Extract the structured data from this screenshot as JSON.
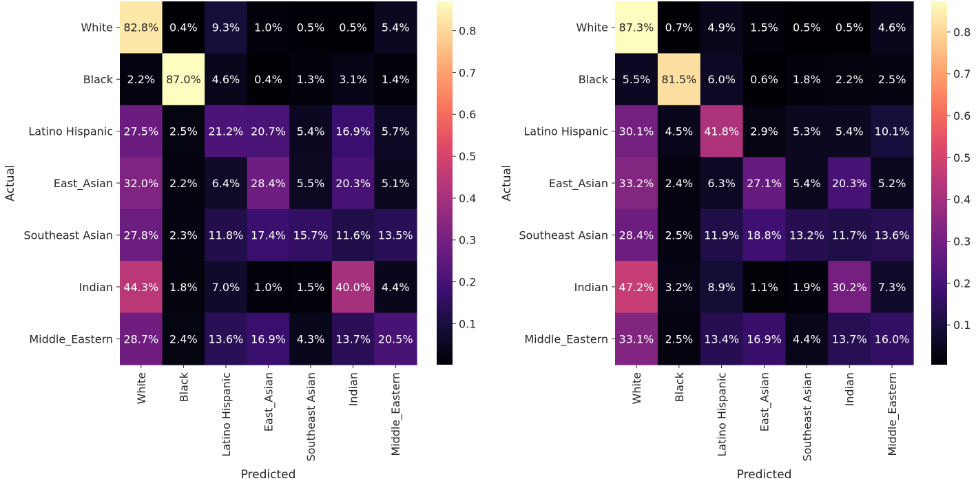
{
  "chart_data": [
    {
      "type": "heatmap",
      "title": "",
      "xlabel": "Predicted",
      "ylabel": "Actual",
      "x_categories": [
        "White",
        "Black",
        "Latino Hispanic",
        "East_Asian",
        "Southeast Asian",
        "Indian",
        "Middle_Eastern"
      ],
      "y_categories": [
        "White",
        "Black",
        "Latino Hispanic",
        "East_Asian",
        "Southeast Asian",
        "Indian",
        "Middle_Eastern"
      ],
      "values": [
        [
          0.828,
          0.004,
          0.093,
          0.01,
          0.005,
          0.005,
          0.054
        ],
        [
          0.022,
          0.87,
          0.046,
          0.004,
          0.013,
          0.031,
          0.014
        ],
        [
          0.275,
          0.025,
          0.212,
          0.207,
          0.054,
          0.169,
          0.057
        ],
        [
          0.32,
          0.022,
          0.064,
          0.284,
          0.055,
          0.203,
          0.051
        ],
        [
          0.278,
          0.023,
          0.118,
          0.174,
          0.157,
          0.116,
          0.135
        ],
        [
          0.443,
          0.018,
          0.07,
          0.01,
          0.015,
          0.4,
          0.044
        ],
        [
          0.287,
          0.024,
          0.136,
          0.169,
          0.043,
          0.137,
          0.205
        ]
      ],
      "annotations": [
        [
          "82.8%",
          "0.4%",
          "9.3%",
          "1.0%",
          "0.5%",
          "0.5%",
          "5.4%"
        ],
        [
          "2.2%",
          "87.0%",
          "4.6%",
          "0.4%",
          "1.3%",
          "3.1%",
          "1.4%"
        ],
        [
          "27.5%",
          "2.5%",
          "21.2%",
          "20.7%",
          "5.4%",
          "16.9%",
          "5.7%"
        ],
        [
          "32.0%",
          "2.2%",
          "6.4%",
          "28.4%",
          "5.5%",
          "20.3%",
          "5.1%"
        ],
        [
          "27.8%",
          "2.3%",
          "11.8%",
          "17.4%",
          "15.7%",
          "11.6%",
          "13.5%"
        ],
        [
          "44.3%",
          "1.8%",
          "7.0%",
          "1.0%",
          "1.5%",
          "40.0%",
          "4.4%"
        ],
        [
          "28.7%",
          "2.4%",
          "13.6%",
          "16.9%",
          "4.3%",
          "13.7%",
          "20.5%"
        ]
      ],
      "colormap": "magma",
      "colorbar": {
        "vmin": 0.002,
        "vmax": 0.87,
        "ticks": [
          0.1,
          0.2,
          0.3,
          0.4,
          0.5,
          0.6,
          0.7,
          0.8
        ],
        "tick_labels": [
          "0.1",
          "0.2",
          "0.3",
          "0.4",
          "0.5",
          "0.6",
          "0.7",
          "0.8"
        ]
      }
    },
    {
      "type": "heatmap",
      "title": "",
      "xlabel": "Predicted",
      "ylabel": "Actual",
      "x_categories": [
        "White",
        "Black",
        "Latino Hispanic",
        "East_Asian",
        "Southeast Asian",
        "Indian",
        "Middle_Eastern"
      ],
      "y_categories": [
        "White",
        "Black",
        "Latino Hispanic",
        "East_Asian",
        "Southeast Asian",
        "Indian",
        "Middle_Eastern"
      ],
      "values": [
        [
          0.873,
          0.007,
          0.049,
          0.015,
          0.005,
          0.005,
          0.046
        ],
        [
          0.055,
          0.815,
          0.06,
          0.006,
          0.018,
          0.022,
          0.025
        ],
        [
          0.301,
          0.045,
          0.418,
          0.029,
          0.053,
          0.054,
          0.101
        ],
        [
          0.332,
          0.024,
          0.063,
          0.271,
          0.054,
          0.203,
          0.052
        ],
        [
          0.284,
          0.025,
          0.119,
          0.188,
          0.132,
          0.117,
          0.136
        ],
        [
          0.472,
          0.032,
          0.089,
          0.011,
          0.019,
          0.302,
          0.073
        ],
        [
          0.331,
          0.025,
          0.134,
          0.169,
          0.044,
          0.137,
          0.16
        ]
      ],
      "annotations": [
        [
          "87.3%",
          "0.7%",
          "4.9%",
          "1.5%",
          "0.5%",
          "0.5%",
          "4.6%"
        ],
        [
          "5.5%",
          "81.5%",
          "6.0%",
          "0.6%",
          "1.8%",
          "2.2%",
          "2.5%"
        ],
        [
          "30.1%",
          "4.5%",
          "41.8%",
          "2.9%",
          "5.3%",
          "5.4%",
          "10.1%"
        ],
        [
          "33.2%",
          "2.4%",
          "6.3%",
          "27.1%",
          "5.4%",
          "20.3%",
          "5.2%"
        ],
        [
          "28.4%",
          "2.5%",
          "11.9%",
          "18.8%",
          "13.2%",
          "11.7%",
          "13.6%"
        ],
        [
          "47.2%",
          "3.2%",
          "8.9%",
          "1.1%",
          "1.9%",
          "30.2%",
          "7.3%"
        ],
        [
          "33.1%",
          "2.5%",
          "13.4%",
          "16.9%",
          "4.4%",
          "13.7%",
          "16.0%"
        ]
      ],
      "colormap": "magma",
      "colorbar": {
        "vmin": 0.005,
        "vmax": 0.873,
        "ticks": [
          0.1,
          0.2,
          0.3,
          0.4,
          0.5,
          0.6,
          0.7,
          0.8
        ],
        "tick_labels": [
          "0.1",
          "0.2",
          "0.3",
          "0.4",
          "0.5",
          "0.6",
          "0.7",
          "0.8"
        ]
      }
    }
  ]
}
